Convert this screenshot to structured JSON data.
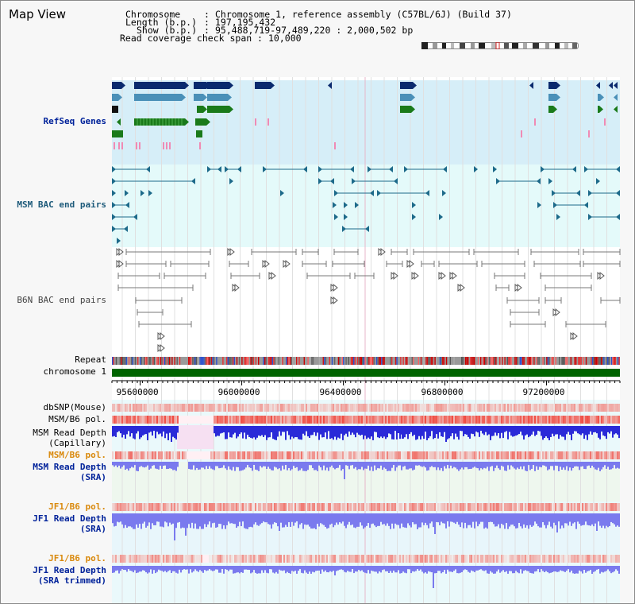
{
  "window_title": "Map View",
  "header": {
    "chromosome_key": "Chromosome",
    "chromosome_val": "Chromosome 1, reference assembly (C57BL/6J) (Build 37)",
    "length_key": "Length (b.p.)",
    "length_val": "197,195,432",
    "show_key": "Show (b.p.)",
    "show_val": "95,488,719-97,489,220 : 2,000,502 bp",
    "coverage_key": "Read coverage check span",
    "coverage_val": "10,000"
  },
  "tracks": {
    "refseq": "RefSeq Genes",
    "msm_bac": "MSM BAC end pairs",
    "b6n_bac": "B6N BAC end pairs",
    "repeat": "Repeat",
    "chromosome": "chromosome 1",
    "dbsnp": "dbSNP(Mouse)",
    "msm_b6_pol_1": "MSM/B6 pol.",
    "msm_read_depth_cap_1": "MSM Read Depth",
    "msm_read_depth_cap_2": "(Capillary)",
    "msm_b6_pol_2": "MSM/B6 pol.",
    "msm_read_depth_sra_1": "MSM Read Depth",
    "msm_read_depth_sra_2": "(SRA)",
    "jf1_b6_pol_1": "JF1/B6 pol.",
    "jf1_read_depth_sra_1": "JF1 Read Depth",
    "jf1_read_depth_sra_2": "(SRA)",
    "jf1_b6_pol_2": "JF1/B6 pol.",
    "jf1_read_depth_trim_1": "JF1 Read Depth",
    "jf1_read_depth_trim_2": "(SRA trimmed)"
  },
  "axis": {
    "ticks": [
      {
        "bp": 95600000,
        "label": "95600000"
      },
      {
        "bp": 96000000,
        "label": "96000000"
      },
      {
        "bp": 96400000,
        "label": "96400000"
      },
      {
        "bp": 96800000,
        "label": "96800000"
      },
      {
        "bp": 97200000,
        "label": "97200000"
      }
    ]
  },
  "colors": {
    "refseq_bg": "#d6eef8",
    "bac_bg": "#e4fafa",
    "navy": "#0a2a6e",
    "steel": "#4a90b8",
    "green": "#1a7a1a",
    "pink": "#f08ab4",
    "teal": "#1d6a8a",
    "gray_feature": "#777777",
    "chromosome_bar": "#006400",
    "pol_red": "#e83030",
    "depth_blue": "#2a2ad8",
    "depth_periwinkle": "#7a7aee"
  }
}
